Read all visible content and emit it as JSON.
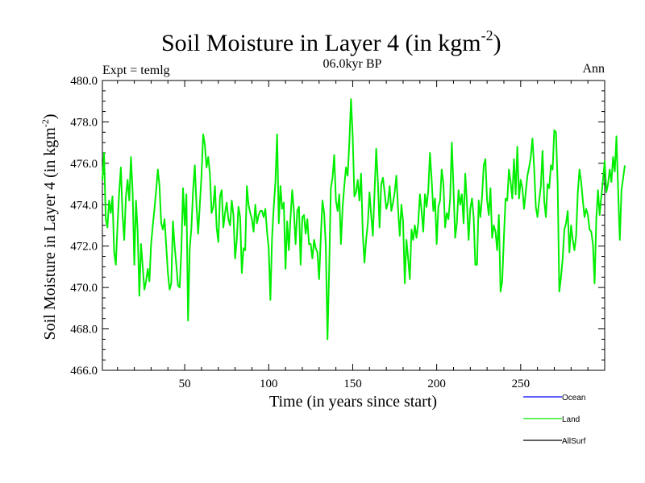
{
  "chart_data": {
    "type": "line",
    "title": "Soil Moisture in Layer 4 (in kgm",
    "title_sup": "-2",
    "title_end": ")",
    "subtitle": "06.0kyr BP",
    "left_label": "Expt = temlg",
    "right_label": "Ann",
    "xlabel": "Time (in years since start)",
    "ylabel": "Soil Moisture in Layer 4 (in kgm",
    "ylabel_sup": "-2",
    "ylabel_end": ")",
    "xlim": [
      1,
      300
    ],
    "ylim": [
      466.0,
      480.0
    ],
    "xticks": [
      50,
      100,
      150,
      200,
      250
    ],
    "xtick_labels": [
      "50",
      "100",
      "150",
      "200",
      "250"
    ],
    "yticks": [
      466,
      468,
      470,
      472,
      474,
      476,
      478,
      480
    ],
    "ytick_labels": [
      "466.0",
      "468.0",
      "470.0",
      "472.0",
      "474.0",
      "476.0",
      "478.0",
      "480.0"
    ],
    "legend": [
      {
        "name": "Ocean",
        "color": "#0000ff"
      },
      {
        "name": "Land",
        "color": "#00ee00"
      },
      {
        "name": "AllSurf",
        "color": "#000000"
      }
    ],
    "series": [
      {
        "name": "Land",
        "color": "#00ee00",
        "x_start": 1,
        "x_step": 1,
        "values": [
          475.2,
          476.5,
          473.3,
          472.9,
          474.2,
          473.6,
          474.4,
          471.7,
          471.1,
          473.0,
          474.6,
          475.8,
          473.5,
          472.3,
          474.4,
          475.2,
          474.2,
          476.3,
          474.6,
          471.1,
          474.2,
          472.7,
          469.6,
          472.1,
          471.0,
          469.9,
          470.3,
          470.9,
          470.3,
          472.1,
          473.0,
          473.8,
          474.7,
          475.7,
          474.9,
          473.1,
          472.8,
          473.3,
          472.0,
          470.7,
          469.9,
          470.2,
          473.2,
          472.0,
          471.1,
          470.1,
          470.0,
          471.8,
          474.8,
          473.0,
          474.5,
          468.4,
          471.9,
          472.9,
          474.7,
          475.9,
          474.0,
          472.6,
          474.0,
          475.4,
          477.4,
          476.9,
          475.8,
          476.3,
          475.5,
          473.6,
          473.9,
          474.9,
          472.9,
          472.2,
          474.4,
          474.7,
          472.9,
          473.6,
          474.1,
          473.3,
          473.0,
          474.2,
          473.5,
          471.4,
          472.3,
          473.9,
          473.4,
          470.7,
          471.9,
          471.8,
          474.9,
          474.0,
          473.6,
          473.3,
          472.7,
          474.0,
          473.1,
          473.5,
          473.7,
          473.7,
          473.4,
          473.8,
          472.7,
          471.9,
          469.4,
          472.4,
          473.9,
          475.1,
          477.4,
          473.1,
          474.9,
          473.8,
          474.1,
          470.9,
          473.2,
          471.8,
          473.4,
          474.7,
          473.7,
          472.1,
          473.7,
          473.9,
          471.1,
          473.4,
          473.5,
          472.6,
          473.3,
          472.1,
          472.1,
          471.4,
          472.3,
          471.9,
          471.7,
          470.4,
          472.4,
          474.2,
          473.6,
          472.0,
          467.5,
          470.9,
          474.8,
          475.3,
          476.4,
          474.2,
          473.7,
          474.5,
          472.1,
          473.9,
          474.9,
          475.8,
          475.4,
          477.0,
          479.1,
          477.3,
          474.4,
          474.6,
          475.2,
          474.2,
          475.5,
          472.6,
          471.2,
          472.3,
          473.1,
          474.6,
          473.5,
          472.5,
          474.6,
          476.7,
          475.1,
          472.9,
          475.0,
          475.3,
          474.6,
          473.8,
          474.1,
          474.9,
          473.7,
          474.1,
          474.6,
          475.4,
          473.8,
          472.5,
          474.0,
          473.2,
          470.2,
          472.3,
          471.4,
          470.4,
          472.8,
          472.3,
          473.0,
          472.4,
          473.1,
          474.5,
          473.7,
          472.7,
          474.5,
          473.9,
          474.7,
          476.5,
          475.2,
          473.7,
          474.3,
          472.1,
          473.9,
          474.2,
          475.7,
          475.0,
          472.9,
          473.6,
          473.3,
          474.3,
          477.0,
          474.8,
          472.4,
          473.1,
          474.7,
          474.0,
          474.5,
          473.1,
          475.5,
          474.1,
          472.3,
          473.8,
          474.3,
          473.4,
          471.1,
          471.1,
          474.2,
          473.4,
          474.4,
          475.9,
          476.2,
          474.2,
          473.5,
          474.8,
          472.4,
          473.0,
          472.7,
          471.8,
          473.5,
          469.8,
          470.3,
          472.4,
          474.3,
          474.2,
          475.7,
          475.1,
          474.3,
          476.2,
          474.5,
          476.8,
          474.3,
          475.2,
          474.8,
          473.8,
          474.6,
          475.4,
          475.8,
          476.3,
          477.2,
          475.8,
          473.9,
          473.4,
          474.2,
          474.9,
          476.6,
          474.2,
          473.4,
          475.0,
          474.8,
          475.9,
          475.7,
          477.6,
          477.5,
          475.0,
          469.8,
          470.5,
          471.4,
          472.8,
          473.1,
          473.7,
          471.7,
          473.0,
          472.3,
          471.8,
          472.5,
          474.6,
          475.7,
          475.1,
          474.2,
          473.4,
          473.8,
          473.5,
          472.8,
          472.7,
          472.1,
          470.2,
          473.3,
          474.7,
          473.5,
          474.4,
          475.2,
          476.1,
          474.6,
          475.0,
          475.7,
          475.1,
          476.3,
          475.6,
          477.3,
          474.7,
          472.3,
          474.7,
          475.3,
          475.9
        ]
      },
      {
        "name": "Ocean",
        "color": "#0000ff",
        "values": []
      },
      {
        "name": "AllSurf",
        "color": "#000000",
        "values": []
      }
    ]
  }
}
